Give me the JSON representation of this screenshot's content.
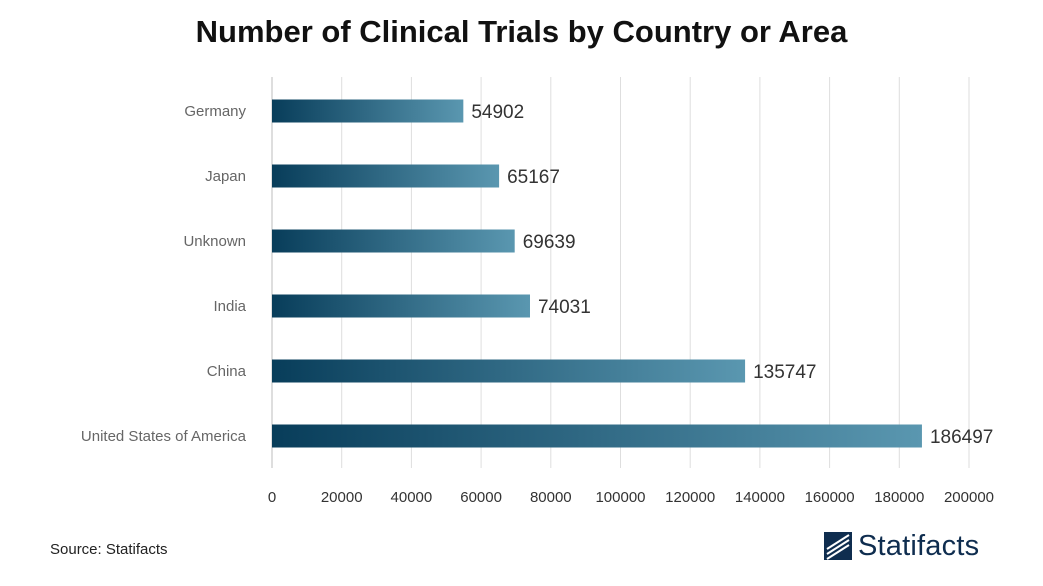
{
  "chart_data": {
    "type": "bar",
    "orientation": "horizontal",
    "title": "Number of Clinical Trials by Country or Area",
    "categories": [
      "Germany",
      "Japan",
      "Unknown",
      "India",
      "China",
      "United States of America"
    ],
    "values": [
      54902,
      65167,
      69639,
      74031,
      135747,
      186497
    ],
    "value_labels": [
      "54902",
      "65167",
      "69639",
      "74031",
      "135747",
      "186497"
    ],
    "xlim": [
      0,
      200000
    ],
    "xticks": [
      0,
      20000,
      40000,
      60000,
      80000,
      100000,
      120000,
      140000,
      160000,
      180000,
      200000
    ],
    "xtick_labels": [
      "0",
      "20000",
      "40000",
      "60000",
      "80000",
      "100000",
      "120000",
      "140000",
      "160000",
      "180000",
      "200000"
    ],
    "grid": "vertical",
    "legend": "none",
    "bar_gradient": [
      "#083d5a",
      "#5a97b0"
    ]
  },
  "footer": {
    "source": "Source: Statifacts",
    "brand": "Statifacts",
    "brand_color": "#0f2d4f"
  }
}
